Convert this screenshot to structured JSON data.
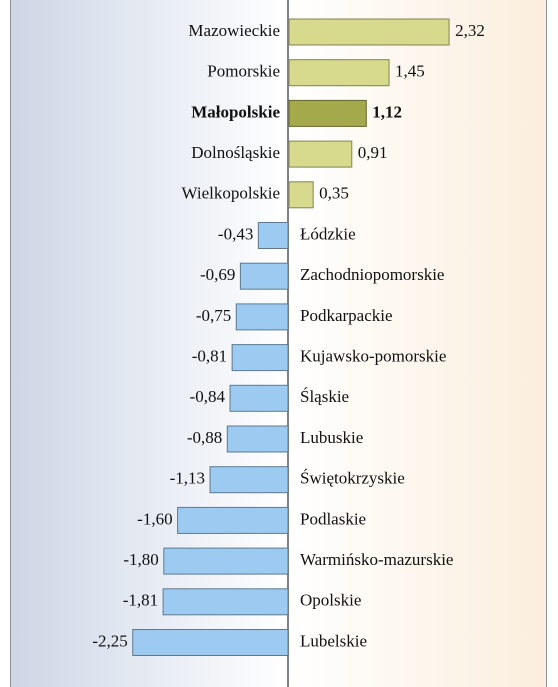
{
  "chart_data": {
    "type": "bar",
    "orientation": "horizontal",
    "categories": [
      "Mazowieckie",
      "Pomorskie",
      "Małopolskie",
      "Dolnośląskie",
      "Wielkopolskie",
      "Łódzkie",
      "Zachodniopomorskie",
      "Podkarpackie",
      "Kujawsko-pomorskie",
      "Śląskie",
      "Lubuskie",
      "Świętokrzyskie",
      "Podlaskie",
      "Warmińsko-mazurskie",
      "Opolskie",
      "Lubelskie"
    ],
    "values": [
      2.32,
      1.45,
      1.12,
      0.91,
      0.35,
      -0.43,
      -0.69,
      -0.75,
      -0.81,
      -0.84,
      -0.88,
      -1.13,
      -1.6,
      -1.8,
      -1.81,
      -2.25
    ],
    "value_labels": [
      "2,32",
      "1,45",
      "1,12",
      "0,91",
      "0,35",
      "-0,43",
      "-0,69",
      "-0,75",
      "-0,81",
      "-0,84",
      "-0,88",
      "-1,13",
      "-1,60",
      "-1,80",
      "-1,81",
      "-2,25"
    ],
    "colors": [
      "#d7da8c",
      "#d7da8c",
      "#a4a94b",
      "#d7da8c",
      "#d7da8c",
      "#9ccaf0",
      "#9ccaf0",
      "#9ccaf0",
      "#9ccaf0",
      "#9ccaf0",
      "#9ccaf0",
      "#9ccaf0",
      "#9ccaf0",
      "#9ccaf0",
      "#9ccaf0",
      "#9ccaf0"
    ],
    "highlight_color": "#a4a94b"
  }
}
